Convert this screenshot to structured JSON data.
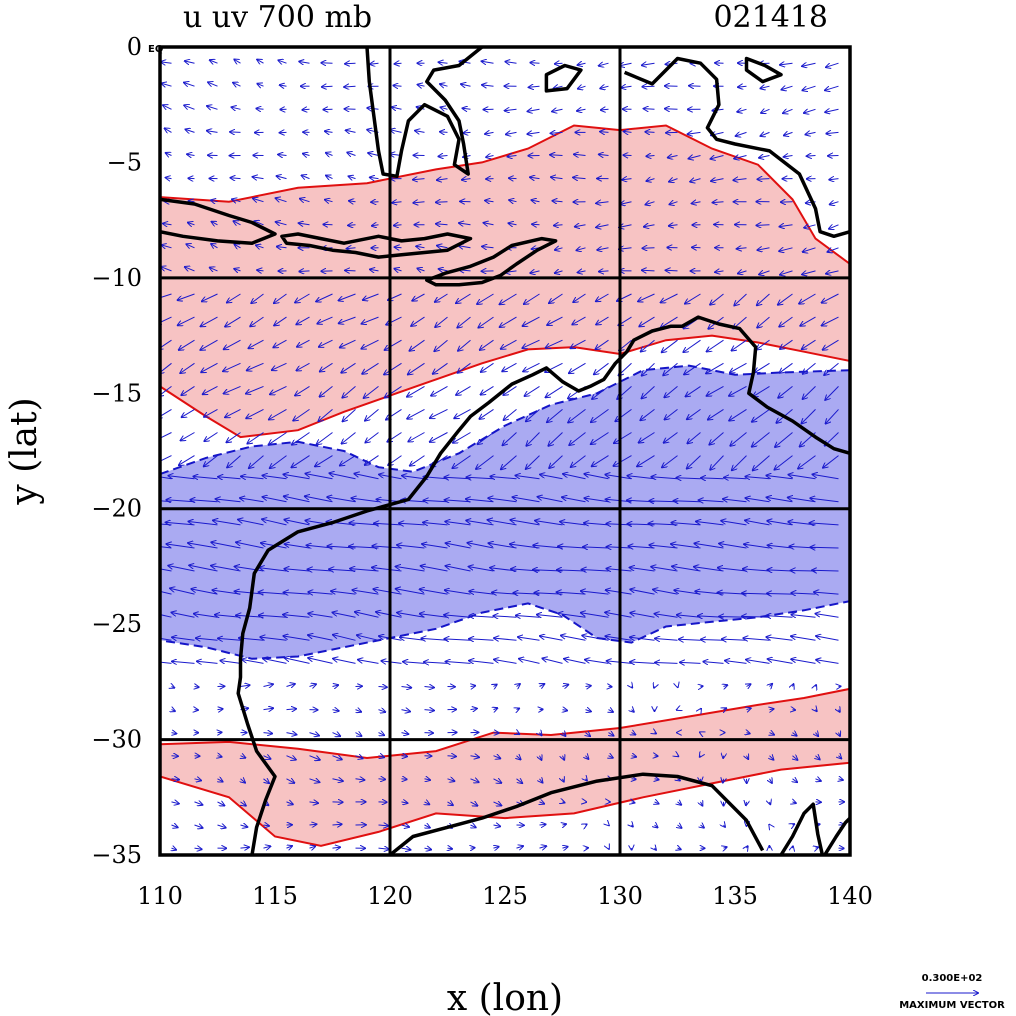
{
  "chart_data": {
    "type": "contour",
    "title_left": "u uv 700 mb",
    "title_right": "021418",
    "xlabel": "x (lon)",
    "ylabel": "y (lat)",
    "xlim": [
      110,
      140
    ],
    "ylim": [
      -35,
      0
    ],
    "x_ticks": [
      110,
      115,
      120,
      125,
      130,
      135,
      140
    ],
    "x_tick_labels": [
      "110",
      "115",
      "120",
      "125",
      "130",
      "135",
      "140"
    ],
    "y_ticks": [
      0,
      -5,
      -10,
      -15,
      -20,
      -25,
      -30,
      -35
    ],
    "y_tick_labels": [
      "0",
      "−5",
      "−10",
      "−15",
      "−20",
      "−25",
      "−30",
      "−35"
    ],
    "eq_label": "EQ",
    "grid_lines_lon": [
      120,
      130
    ],
    "grid_lines_lat": [
      -10,
      -20,
      -30
    ],
    "vector_legend": {
      "value": "0.300E+02",
      "label": "MAXIMUM VECTOR"
    },
    "colors": {
      "positive_fill": "#f7c3c3",
      "positive_line": "#e01010",
      "negative_fill": "#aaaaf2",
      "negative_line": "#1515c8",
      "vector": "#1a1acc",
      "coast": "#000000"
    },
    "positive_bands": [
      {
        "outline": [
          [
            110,
            -6.5
          ],
          [
            113,
            -6.7
          ],
          [
            116,
            -6.1
          ],
          [
            119,
            -5.9
          ],
          [
            122,
            -5.3
          ],
          [
            124,
            -5.0
          ],
          [
            126,
            -4.4
          ],
          [
            128,
            -3.4
          ],
          [
            130,
            -3.6
          ],
          [
            132,
            -3.4
          ],
          [
            134,
            -4.4
          ],
          [
            136,
            -5.1
          ],
          [
            137.5,
            -6.6
          ],
          [
            138.5,
            -8.3
          ],
          [
            140,
            -9.4
          ],
          [
            140,
            -13.6
          ],
          [
            138,
            -13.2
          ],
          [
            136,
            -12.8
          ],
          [
            134,
            -12.5
          ],
          [
            132,
            -12.7
          ],
          [
            130,
            -13.3
          ],
          [
            128,
            -13.0
          ],
          [
            126,
            -13.1
          ],
          [
            124,
            -13.7
          ],
          [
            122,
            -14.4
          ],
          [
            120,
            -15.1
          ],
          [
            118,
            -15.8
          ],
          [
            116,
            -16.6
          ],
          [
            113.5,
            -16.9
          ],
          [
            112,
            -16.0
          ],
          [
            110,
            -14.7
          ]
        ]
      },
      {
        "outline": [
          [
            110,
            -30.2
          ],
          [
            113,
            -30.1
          ],
          [
            116,
            -30.4
          ],
          [
            119,
            -30.8
          ],
          [
            122,
            -30.5
          ],
          [
            124.5,
            -29.7
          ],
          [
            127,
            -29.8
          ],
          [
            130,
            -29.5
          ],
          [
            133,
            -29.0
          ],
          [
            136,
            -28.5
          ],
          [
            138,
            -28.2
          ],
          [
            140,
            -27.8
          ],
          [
            140,
            -31.0
          ],
          [
            137,
            -31.3
          ],
          [
            134,
            -31.9
          ],
          [
            131,
            -32.5
          ],
          [
            128,
            -33.2
          ],
          [
            125,
            -33.4
          ],
          [
            122,
            -33.2
          ],
          [
            119.5,
            -34.0
          ],
          [
            117,
            -34.6
          ],
          [
            115,
            -34.2
          ],
          [
            113,
            -32.5
          ],
          [
            110,
            -31.6
          ]
        ]
      }
    ],
    "negative_bands": [
      {
        "outline": [
          [
            110,
            -18.5
          ],
          [
            112,
            -17.8
          ],
          [
            114,
            -17.3
          ],
          [
            116,
            -17.1
          ],
          [
            118,
            -17.5
          ],
          [
            119.5,
            -18.2
          ],
          [
            121,
            -18.4
          ],
          [
            123,
            -17.6
          ],
          [
            125,
            -16.4
          ],
          [
            127,
            -15.5
          ],
          [
            129,
            -15.0
          ],
          [
            131,
            -14.0
          ],
          [
            133,
            -13.8
          ],
          [
            135,
            -14.2
          ],
          [
            137,
            -14.1
          ],
          [
            140,
            -14.0
          ],
          [
            140,
            -24.0
          ],
          [
            138,
            -24.4
          ],
          [
            136,
            -24.7
          ],
          [
            134,
            -24.9
          ],
          [
            132,
            -25.1
          ],
          [
            130.5,
            -25.8
          ],
          [
            129,
            -25.6
          ],
          [
            127.5,
            -24.6
          ],
          [
            126,
            -24.1
          ],
          [
            124,
            -24.5
          ],
          [
            122,
            -25.2
          ],
          [
            120,
            -25.6
          ],
          [
            118,
            -26.0
          ],
          [
            116,
            -26.4
          ],
          [
            114,
            -26.5
          ],
          [
            112,
            -26.0
          ],
          [
            110,
            -25.7
          ]
        ]
      }
    ],
    "coastlines": [
      [
        [
          114.0,
          -35.0
        ],
        [
          114.2,
          -33.8
        ],
        [
          114.6,
          -32.6
        ],
        [
          115.0,
          -31.6
        ],
        [
          114.2,
          -30.5
        ],
        [
          113.8,
          -29.3
        ],
        [
          113.4,
          -28.0
        ],
        [
          113.5,
          -27.3
        ],
        [
          113.5,
          -26.5
        ],
        [
          113.6,
          -25.4
        ],
        [
          113.9,
          -24.3
        ],
        [
          114.1,
          -22.8
        ],
        [
          114.7,
          -21.8
        ],
        [
          116.0,
          -21.0
        ],
        [
          117.5,
          -20.6
        ],
        [
          119.0,
          -20.1
        ],
        [
          120.8,
          -19.6
        ],
        [
          121.6,
          -18.6
        ],
        [
          122.2,
          -17.6
        ],
        [
          123.0,
          -16.6
        ],
        [
          123.5,
          -16.0
        ],
        [
          124.3,
          -15.4
        ],
        [
          125.3,
          -14.6
        ],
        [
          126.2,
          -14.2
        ],
        [
          126.8,
          -13.9
        ],
        [
          127.5,
          -14.5
        ],
        [
          128.2,
          -14.9
        ],
        [
          128.7,
          -14.7
        ],
        [
          129.3,
          -14.4
        ],
        [
          129.8,
          -13.7
        ],
        [
          130.3,
          -13.2
        ],
        [
          130.6,
          -12.7
        ],
        [
          131.4,
          -12.3
        ],
        [
          132.2,
          -12.1
        ],
        [
          132.7,
          -12.1
        ],
        [
          133.4,
          -11.7
        ],
        [
          134.3,
          -12.0
        ],
        [
          135.2,
          -12.2
        ],
        [
          135.9,
          -13.0
        ],
        [
          135.8,
          -14.1
        ],
        [
          135.6,
          -15.0
        ],
        [
          136.4,
          -15.6
        ],
        [
          137.5,
          -16.2
        ],
        [
          138.5,
          -16.9
        ],
        [
          139.3,
          -17.4
        ],
        [
          140.0,
          -17.6
        ]
      ],
      [
        [
          120.0,
          -35.0
        ],
        [
          121.0,
          -34.2
        ],
        [
          122.5,
          -33.8
        ],
        [
          124.0,
          -33.4
        ],
        [
          125.5,
          -32.9
        ],
        [
          127.0,
          -32.3
        ],
        [
          129.0,
          -31.8
        ],
        [
          131.0,
          -31.5
        ],
        [
          132.5,
          -31.6
        ],
        [
          134.0,
          -32.0
        ],
        [
          135.5,
          -33.5
        ],
        [
          136.2,
          -34.8
        ]
      ],
      [
        [
          137.0,
          -35.0
        ],
        [
          137.5,
          -34.2
        ],
        [
          138.0,
          -33.2
        ],
        [
          138.4,
          -32.8
        ],
        [
          138.6,
          -34.1
        ],
        [
          138.8,
          -35.0
        ]
      ],
      [
        [
          138.9,
          -35.0
        ],
        [
          139.4,
          -34.2
        ],
        [
          139.8,
          -33.6
        ],
        [
          140.0,
          -33.4
        ]
      ],
      [
        [
          110.0,
          -6.6
        ],
        [
          111.5,
          -6.8
        ],
        [
          113.0,
          -7.3
        ],
        [
          114.0,
          -7.6
        ],
        [
          115.0,
          -8.1
        ],
        [
          114.0,
          -8.5
        ],
        [
          112.5,
          -8.4
        ],
        [
          111.0,
          -8.2
        ],
        [
          110.0,
          -8.0
        ]
      ],
      [
        [
          115.3,
          -8.2
        ],
        [
          116.0,
          -8.1
        ],
        [
          117.0,
          -8.3
        ],
        [
          118.0,
          -8.5
        ],
        [
          119.5,
          -8.2
        ],
        [
          120.5,
          -8.4
        ],
        [
          121.5,
          -8.3
        ],
        [
          122.5,
          -8.1
        ],
        [
          123.5,
          -8.3
        ],
        [
          122.5,
          -8.8
        ],
        [
          121.5,
          -8.9
        ],
        [
          120.5,
          -9.0
        ],
        [
          119.5,
          -9.1
        ],
        [
          118.5,
          -8.9
        ],
        [
          117.5,
          -8.8
        ],
        [
          116.5,
          -8.6
        ],
        [
          115.5,
          -8.5
        ],
        [
          115.3,
          -8.2
        ]
      ],
      [
        [
          121.6,
          -10.1
        ],
        [
          122.4,
          -9.8
        ],
        [
          123.5,
          -9.5
        ],
        [
          124.5,
          -9.1
        ],
        [
          125.3,
          -8.6
        ],
        [
          126.6,
          -8.3
        ],
        [
          127.2,
          -8.4
        ],
        [
          126.4,
          -8.8
        ],
        [
          125.5,
          -9.4
        ],
        [
          124.8,
          -9.9
        ],
        [
          124.0,
          -10.2
        ],
        [
          123.0,
          -10.3
        ],
        [
          122.0,
          -10.3
        ],
        [
          121.6,
          -10.1
        ]
      ],
      [
        [
          119.0,
          0.0
        ],
        [
          119.1,
          -1.5
        ],
        [
          119.3,
          -3.0
        ],
        [
          119.5,
          -4.5
        ],
        [
          119.7,
          -5.5
        ],
        [
          120.3,
          -5.6
        ],
        [
          120.5,
          -4.5
        ],
        [
          120.8,
          -3.2
        ],
        [
          121.5,
          -2.5
        ],
        [
          122.5,
          -3.0
        ],
        [
          123.0,
          -4.0
        ],
        [
          122.8,
          -5.1
        ],
        [
          123.4,
          -5.5
        ],
        [
          123.2,
          -4.2
        ],
        [
          123.0,
          -3.2
        ],
        [
          122.4,
          -2.3
        ],
        [
          121.6,
          -1.5
        ],
        [
          121.9,
          -1.0
        ],
        [
          123.0,
          -0.8
        ],
        [
          124.0,
          0.0
        ]
      ],
      [
        [
          126.8,
          -1.2
        ],
        [
          127.6,
          -0.8
        ],
        [
          128.3,
          -1.0
        ],
        [
          127.7,
          -1.8
        ],
        [
          126.8,
          -1.9
        ],
        [
          126.8,
          -1.2
        ]
      ],
      [
        [
          130.2,
          -1.1
        ],
        [
          131.4,
          -1.6
        ],
        [
          132.5,
          -0.5
        ],
        [
          133.5,
          -0.7
        ],
        [
          134.2,
          -1.4
        ],
        [
          134.3,
          -2.5
        ],
        [
          133.8,
          -3.5
        ],
        [
          134.2,
          -4.0
        ],
        [
          135.0,
          -4.2
        ],
        [
          136.5,
          -4.5
        ],
        [
          137.8,
          -5.5
        ],
        [
          138.5,
          -7.0
        ],
        [
          138.7,
          -8.0
        ],
        [
          139.3,
          -8.2
        ],
        [
          140.0,
          -8.0
        ]
      ],
      [
        [
          135.5,
          -0.5
        ],
        [
          136.3,
          -0.8
        ],
        [
          137.0,
          -1.2
        ],
        [
          136.2,
          -1.5
        ],
        [
          135.5,
          -1.0
        ],
        [
          135.5,
          -0.5
        ]
      ]
    ]
  }
}
